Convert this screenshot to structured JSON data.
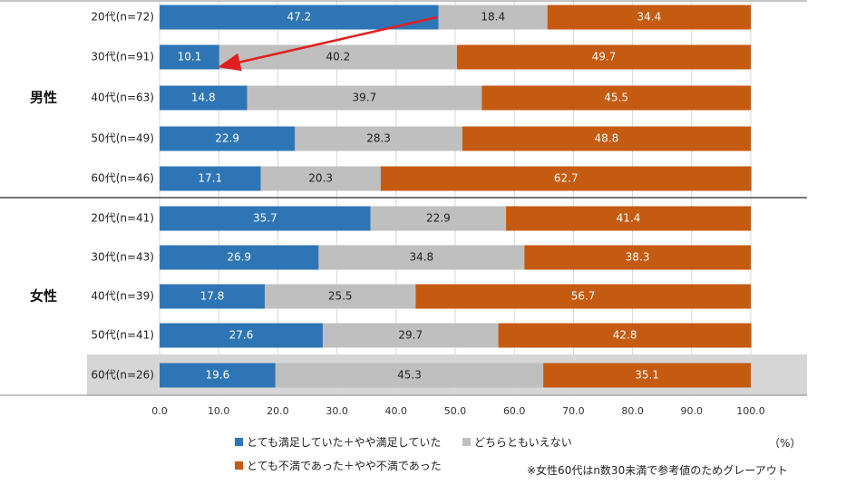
{
  "chart_data": {
    "type": "bar",
    "orientation": "horizontal-stacked",
    "x_ticks": [
      "0.0",
      "10.0",
      "20.0",
      "30.0",
      "40.0",
      "50.0",
      "60.0",
      "70.0",
      "80.0",
      "90.0",
      "100.0"
    ],
    "xlim": [
      0,
      100
    ],
    "unit_label": "（%）",
    "groups": [
      {
        "label": "男性",
        "categories": [
          "20代(n=72)",
          "30代(n=91)",
          "40代(n=63)",
          "50代(n=49)",
          "60代(n=46)"
        ],
        "series_values": [
          [
            47.2,
            10.1,
            14.8,
            22.9,
            17.1
          ],
          [
            18.4,
            40.2,
            39.7,
            28.3,
            20.3
          ],
          [
            34.4,
            49.7,
            45.5,
            48.8,
            62.7
          ]
        ]
      },
      {
        "label": "女性",
        "categories": [
          "20代(n=41)",
          "30代(n=43)",
          "40代(n=39)",
          "50代(n=41)",
          "60代(n=26)"
        ],
        "series_values": [
          [
            35.7,
            26.9,
            17.8,
            27.6,
            19.6
          ],
          [
            22.9,
            34.8,
            25.5,
            29.7,
            45.3
          ],
          [
            41.4,
            38.3,
            56.7,
            42.8,
            35.1
          ]
        ]
      }
    ],
    "series": [
      {
        "name": "とても満足していた＋やや満足していた",
        "color": "#2e75b6"
      },
      {
        "name": "どちらともいえない",
        "color": "#bfbfbf"
      },
      {
        "name": "とても不満であった＋やや不満であった",
        "color": "#c55a11"
      }
    ],
    "greyed_out_row": "女性 60代(n=26)",
    "annotation": "arrow from 男性 20代 satisfied (47.2) to 男性 30代 satisfied (10.1)",
    "note": "※女性60代はn数30未満で参考値のためグレーアウト"
  }
}
